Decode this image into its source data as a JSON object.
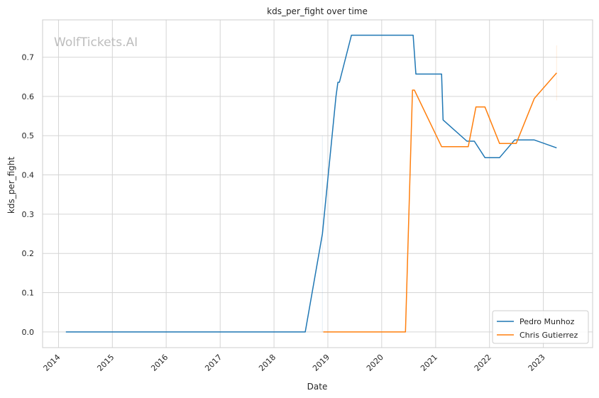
{
  "chart_data": {
    "type": "line",
    "title": "kds_per_fight over time",
    "xlabel": "Date",
    "ylabel": "kds_per_fight",
    "watermark": "WolfTickets.AI",
    "xlim": [
      "2013-09-15",
      "2023-12-01"
    ],
    "ylim": [
      -0.04,
      0.795
    ],
    "x_ticks": [
      "2014",
      "2015",
      "2016",
      "2017",
      "2018",
      "2019",
      "2020",
      "2021",
      "2022",
      "2023"
    ],
    "y_ticks": [
      "0.0",
      "0.1",
      "0.2",
      "0.3",
      "0.4",
      "0.5",
      "0.6",
      "0.7"
    ],
    "grid": true,
    "legend_position": "lower right",
    "series": [
      {
        "name": "Pedro Munhoz",
        "color": "#1f77b4",
        "x": [
          "2014-02-20",
          "2018-08-01",
          "2018-11-25",
          "2019-02-25",
          "2019-03-10",
          "2019-03-20",
          "2019-06-10",
          "2020-08-01",
          "2020-08-20",
          "2021-02-10",
          "2021-02-20",
          "2021-08-01",
          "2021-09-20",
          "2021-12-01",
          "2022-03-10",
          "2022-06-20",
          "2022-11-01",
          "2023-04-01"
        ],
        "y": [
          0.0,
          0.0,
          0.25,
          0.6,
          0.636,
          0.636,
          0.756,
          0.756,
          0.657,
          0.657,
          0.54,
          0.486,
          0.486,
          0.444,
          0.444,
          0.489,
          0.489,
          0.469
        ]
      },
      {
        "name": "Chris Gutierrez",
        "color": "#ff7f0e",
        "x": [
          "2018-12-01",
          "2020-06-10",
          "2020-07-28",
          "2020-08-10",
          "2021-02-10",
          "2021-08-10",
          "2021-10-01",
          "2021-12-01",
          "2022-03-10",
          "2022-07-01",
          "2022-11-01",
          "2023-04-01"
        ],
        "y": [
          0.0,
          0.0,
          0.616,
          0.616,
          0.472,
          0.472,
          0.573,
          0.573,
          0.48,
          0.48,
          0.595,
          0.66
        ]
      }
    ]
  }
}
